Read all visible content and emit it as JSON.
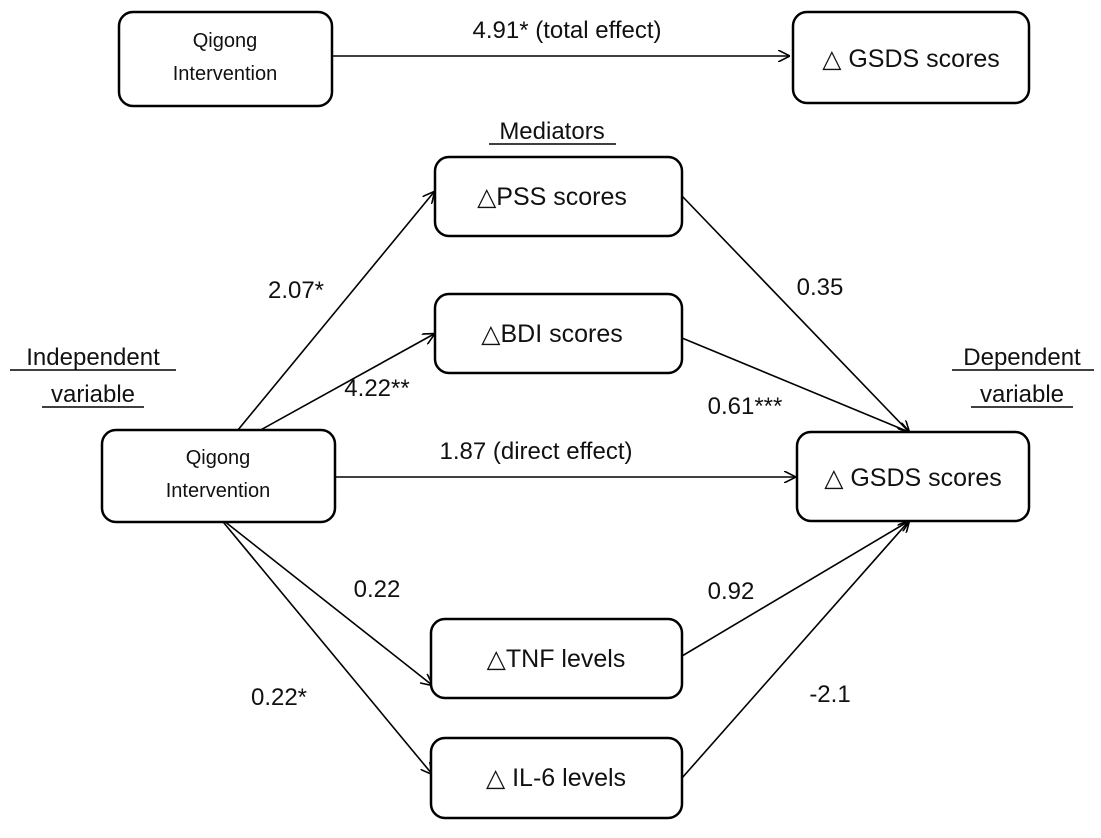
{
  "top_model": {
    "iv_box": [
      "Qigong",
      "Intervention"
    ],
    "dv_box": "△ GSDS scores",
    "total_effect_label": "4.91* (total effect)"
  },
  "headings": {
    "mediators": "Mediators",
    "independent": [
      "Independent",
      "variable"
    ],
    "dependent": [
      "Dependent",
      "variable"
    ]
  },
  "boxes": {
    "iv": [
      "Qigong",
      "Intervention"
    ],
    "dv": "△ GSDS scores",
    "pss": "△PSS scores",
    "bdi": "△BDI scores",
    "tnf": "△TNF levels",
    "il6": "△ IL-6 levels"
  },
  "paths": {
    "iv_pss": "2.07*",
    "iv_bdi": "4.22**",
    "iv_dv_direct": "1.87 (direct effect)",
    "iv_tnf": "0.22",
    "iv_il6": "0.22*",
    "pss_dv": "0.35",
    "bdi_dv": "0.61***",
    "tnf_dv": "0.92",
    "il6_dv": "-2.1"
  }
}
